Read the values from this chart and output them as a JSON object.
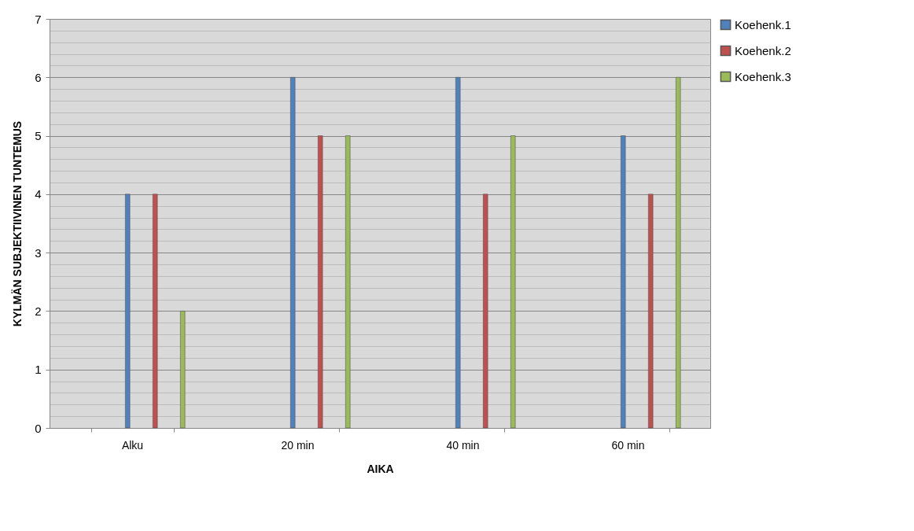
{
  "chart_data": {
    "type": "bar",
    "xlabel": "AIKA",
    "ylabel": "KYLMÄN SUBJEKTIIVINEN TUNTEMUS",
    "categories": [
      "Alku",
      "20 min",
      "40 min",
      "60 min"
    ],
    "series": [
      {
        "name": "Koehenk.1",
        "color": "#4f81bd",
        "values": [
          4,
          6,
          6,
          5
        ]
      },
      {
        "name": "Koehenk.2",
        "color": "#c0504d",
        "values": [
          4,
          5,
          4,
          4
        ]
      },
      {
        "name": "Koehenk.3",
        "color": "#9bbb59",
        "values": [
          2,
          5,
          5,
          6
        ]
      }
    ],
    "ylim": [
      0,
      7
    ],
    "yticks": [
      0,
      {
        "value": 0.2,
        "label": null
      },
      {
        "value": 0.4,
        "label": null
      },
      {
        "value": 0.6,
        "label": null
      },
      {
        "value": 0.8,
        "label": null
      },
      1,
      {
        "value": 1.2,
        "label": null
      },
      {
        "value": 1.4,
        "label": null
      },
      {
        "value": 1.6,
        "label": null
      },
      {
        "value": 1.8,
        "label": null
      },
      2,
      {
        "value": 2.2,
        "label": null
      },
      {
        "value": 2.4,
        "label": null
      },
      {
        "value": 2.6,
        "label": null
      },
      {
        "value": 2.8,
        "label": null
      },
      3,
      {
        "value": 3.2,
        "label": null
      },
      {
        "value": 3.4,
        "label": null
      },
      {
        "value": 3.6,
        "label": null
      },
      {
        "value": 3.8,
        "label": null
      },
      4,
      {
        "value": 4.2,
        "label": null
      },
      {
        "value": 4.4,
        "label": null
      },
      {
        "value": 4.6,
        "label": null
      },
      {
        "value": 4.8,
        "label": null
      },
      5,
      {
        "value": 5.2,
        "label": null
      },
      {
        "value": 5.4,
        "label": null
      },
      {
        "value": 5.6,
        "label": null
      },
      {
        "value": 5.8,
        "label": null
      },
      6,
      {
        "value": 6.2,
        "label": null
      },
      {
        "value": 6.4,
        "label": null
      },
      {
        "value": 6.6,
        "label": null
      },
      {
        "value": 6.8,
        "label": null
      },
      7
    ],
    "grid": true,
    "legend": "right"
  }
}
